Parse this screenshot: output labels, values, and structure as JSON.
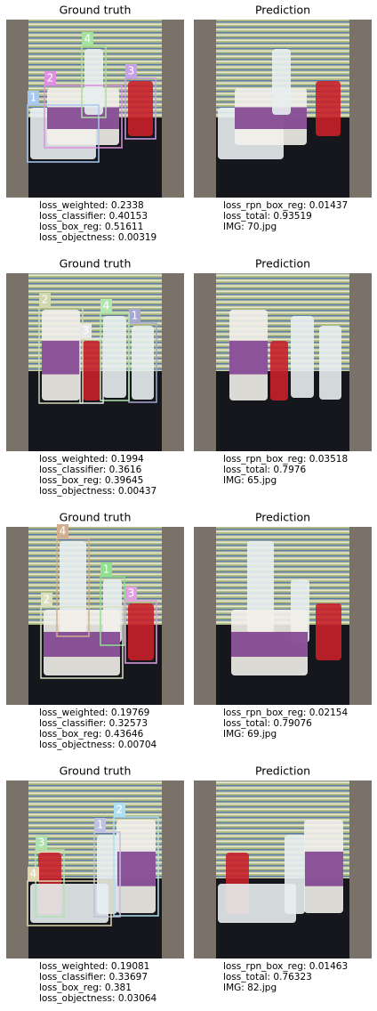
{
  "panels": [
    {
      "left": {
        "title": "Ground truth",
        "boxes": [
          "1",
          "2",
          "3",
          "4"
        ],
        "losses": [
          "loss_weighted: 0.2338",
          "loss_classifier: 0.40153",
          "loss_box_reg: 0.51611",
          "loss_objectness: 0.00319"
        ]
      },
      "right": {
        "title": "Prediction",
        "losses": [
          "loss_rpn_box_reg: 0.01437",
          "loss_total: 0.93519",
          "IMG: 70.jpg"
        ]
      }
    },
    {
      "left": {
        "title": "Ground truth",
        "boxes": [
          "2",
          "1",
          "4",
          "3"
        ],
        "losses": [
          "loss_weighted: 0.1994",
          "loss_classifier: 0.3616",
          "loss_box_reg: 0.39645",
          "loss_objectness: 0.00437"
        ]
      },
      "right": {
        "title": "Prediction",
        "losses": [
          "loss_rpn_box_reg: 0.03518",
          "loss_total: 0.7976",
          "IMG: 65.jpg"
        ]
      }
    },
    {
      "left": {
        "title": "Ground truth",
        "boxes": [
          "4",
          "1",
          "2",
          "3"
        ],
        "losses": [
          "loss_weighted: 0.19769",
          "loss_classifier: 0.32573",
          "loss_box_reg: 0.43646",
          "loss_objectness: 0.00704"
        ]
      },
      "right": {
        "title": "Prediction",
        "losses": [
          "loss_rpn_box_reg: 0.02154",
          "loss_total: 0.79076",
          "IMG: 69.jpg"
        ]
      }
    },
    {
      "left": {
        "title": "Ground truth",
        "boxes": [
          "2",
          "1",
          "3",
          "4"
        ],
        "losses": [
          "loss_weighted: 0.19081",
          "loss_classifier: 0.33697",
          "loss_box_reg: 0.381",
          "loss_objectness: 0.03064"
        ]
      },
      "right": {
        "title": "Prediction",
        "losses": [
          "loss_rpn_box_reg: 0.01463",
          "loss_total: 0.76323",
          "IMG: 82.jpg"
        ]
      }
    }
  ]
}
